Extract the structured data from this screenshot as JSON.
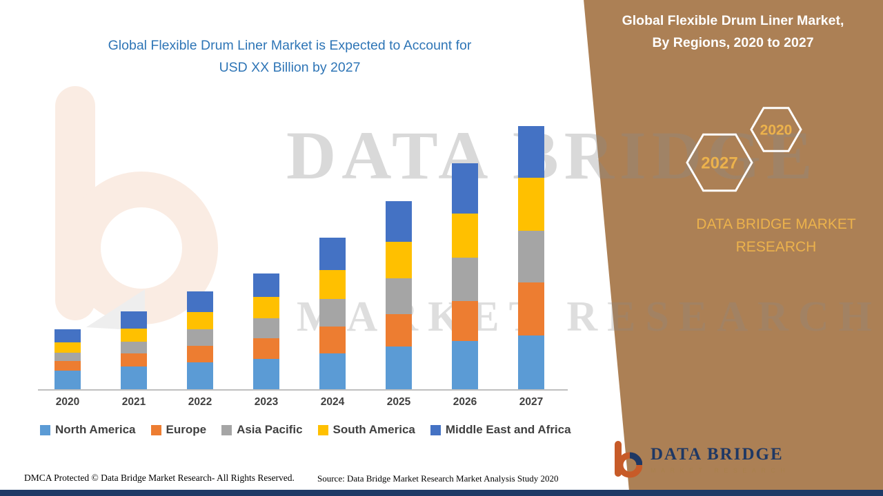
{
  "main_title": {
    "line1": "Global Flexible Drum Liner Market is Expected to Account for",
    "line2": "USD XX Billion by 2027"
  },
  "side_panel": {
    "title_line1": "Global Flexible Drum Liner Market,",
    "title_line2": "By Regions, 2020 to 2027",
    "hex_small_label": "2020",
    "hex_large_label": "2027",
    "brand_line1": "DATA BRIDGE MARKET",
    "brand_line2": "RESEARCH",
    "panel_color": "#AC8055",
    "accent_gold": "#ECB24C"
  },
  "watermark": {
    "line1": "DATA BRIDGE",
    "line2": "MARKET RESEARCH"
  },
  "logo": {
    "title": "DATA BRIDGE",
    "subtitle": "MARKET RESEARCH"
  },
  "footer": {
    "dmca": "DMCA Protected © Data Bridge Market Research- All Rights Reserved.",
    "source": "Source: Data Bridge Market Research Market Analysis Study 2020"
  },
  "chart_data": {
    "type": "bar",
    "stacked": true,
    "title": "Global Flexible Drum Liner Market is Expected to Account for USD XX Billion by 2027",
    "xlabel": "",
    "ylabel": "",
    "grid": false,
    "legend_position": "bottom",
    "ylim": [
      0,
      40
    ],
    "unit_note": "no numeric y-axis shown; values estimated in relative units",
    "categories": [
      "2020",
      "2021",
      "2022",
      "2023",
      "2024",
      "2025",
      "2026",
      "2027"
    ],
    "series": [
      {
        "name": "North America",
        "color": "#5B9BD5",
        "values": [
          2.7,
          3.3,
          3.9,
          4.4,
          5.2,
          6.2,
          7.0,
          7.8
        ]
      },
      {
        "name": "Europe",
        "color": "#ED7D31",
        "values": [
          1.4,
          1.9,
          2.4,
          3.0,
          3.9,
          4.7,
          5.8,
          7.7
        ]
      },
      {
        "name": "Asia Pacific",
        "color": "#A5A5A5",
        "values": [
          1.2,
          1.7,
          2.4,
          2.9,
          4.0,
          5.2,
          6.3,
          7.5
        ]
      },
      {
        "name": "South America",
        "color": "#FFC000",
        "values": [
          1.5,
          1.9,
          2.5,
          3.1,
          4.2,
          5.3,
          6.4,
          7.7
        ]
      },
      {
        "name": "Middle East and Africa",
        "color": "#4472C4",
        "values": [
          1.9,
          2.5,
          3.0,
          3.4,
          4.7,
          5.9,
          7.3,
          7.5
        ]
      }
    ],
    "totals": [
      8.7,
      11.3,
      14.2,
      16.8,
      22.0,
      27.3,
      32.8,
      38.2
    ]
  }
}
